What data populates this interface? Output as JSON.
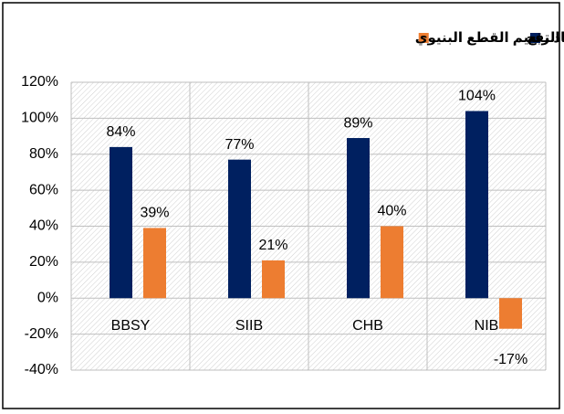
{
  "chart_data": {
    "type": "bar",
    "categories": [
      "BBSY",
      "SIIB",
      "CHB",
      "NIB"
    ],
    "series": [
      {
        "name": "هامش الربح",
        "color": "#002060",
        "values": [
          84,
          77,
          89,
          104
        ],
        "value_labels": [
          "84%",
          "77%",
          "89%",
          "104%"
        ]
      },
      {
        "name": "هامش الربح بعد استبعاد تقييم القطع البنيوي",
        "color": "#ED7D31",
        "values": [
          39,
          21,
          40,
          -17
        ],
        "value_labels": [
          "39%",
          "21%",
          "40%",
          "-17%"
        ]
      }
    ],
    "ylim": [
      -40,
      120
    ],
    "yticks": [
      {
        "value": -40,
        "label": "-40%"
      },
      {
        "value": -20,
        "label": "-20%"
      },
      {
        "value": 0,
        "label": "0%"
      },
      {
        "value": 20,
        "label": "20%"
      },
      {
        "value": 40,
        "label": "40%"
      },
      {
        "value": 60,
        "label": "60%"
      },
      {
        "value": 80,
        "label": "80%"
      },
      {
        "value": 100,
        "label": "100%"
      },
      {
        "value": 120,
        "label": "120%"
      }
    ],
    "grid": true,
    "legend": "top"
  }
}
